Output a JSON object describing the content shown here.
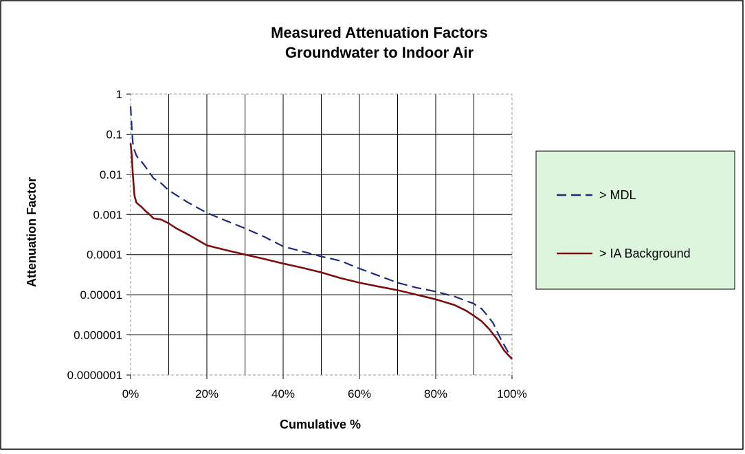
{
  "chart_data": {
    "type": "line",
    "title": [
      "Measured Attenuation Factors",
      "Groundwater to Indoor Air"
    ],
    "xlabel": "Cumulative %",
    "ylabel": "Attenuation Factor",
    "xlim": [
      0,
      100
    ],
    "ylim": [
      1e-07,
      1
    ],
    "yscale": "log",
    "grid": true,
    "legend_position": "right",
    "x_tick_values": [
      0,
      20,
      40,
      60,
      80,
      100
    ],
    "x_tick_labels": [
      "0%",
      "20%",
      "40%",
      "60%",
      "80%",
      "100%"
    ],
    "y_tick_values": [
      1,
      0.1,
      0.01,
      0.001,
      0.0001,
      1e-05,
      1e-06,
      1e-07
    ],
    "y_tick_labels": [
      "1",
      "0.1",
      "0.01",
      "0.001",
      "0.0001",
      "0.00001",
      "0.000001",
      "0.0000001"
    ],
    "vertical_gridlines": [
      10,
      20,
      30,
      40,
      50,
      60,
      70,
      80,
      90
    ],
    "series": [
      {
        "name": "> MDL",
        "color": "#1f2a7a",
        "style": "dashed",
        "x": [
          0,
          0.3,
          0.6,
          1,
          1.5,
          2,
          3,
          4,
          5,
          6,
          8,
          10,
          15,
          20,
          25,
          30,
          35,
          40,
          45,
          50,
          55,
          60,
          65,
          70,
          75,
          80,
          85,
          88,
          90,
          91,
          92,
          93,
          95,
          97,
          100
        ],
        "y": [
          0.5,
          0.15,
          0.06,
          0.04,
          0.03,
          0.025,
          0.02,
          0.015,
          0.011,
          0.008,
          0.006,
          0.004,
          0.002,
          0.0011,
          0.0007,
          0.00045,
          0.00028,
          0.00016,
          0.00012,
          9e-05,
          7e-05,
          4.5e-05,
          3e-05,
          2e-05,
          1.5e-05,
          1.2e-05,
          9e-06,
          7e-06,
          6e-06,
          5e-06,
          4.5e-06,
          3.5e-06,
          2e-06,
          8e-07,
          2.5e-07
        ]
      },
      {
        "name": "> IA Background",
        "color": "#7b0f0f",
        "style": "solid",
        "x": [
          0,
          0.3,
          0.6,
          1,
          1.5,
          2,
          3,
          4,
          5,
          6,
          8,
          10,
          12,
          15,
          18,
          20,
          25,
          30,
          35,
          40,
          45,
          50,
          55,
          60,
          65,
          70,
          75,
          80,
          85,
          88,
          90,
          92,
          94,
          96,
          98,
          100
        ],
        "y": [
          0.06,
          0.03,
          0.01,
          0.003,
          0.002,
          0.0018,
          0.0015,
          0.0012,
          0.001,
          0.0008,
          0.00075,
          0.0006,
          0.00045,
          0.00032,
          0.00022,
          0.00017,
          0.00013,
          0.0001,
          7.8e-05,
          6e-05,
          4.7e-05,
          3.6e-05,
          2.6e-05,
          2e-05,
          1.6e-05,
          1.3e-05,
          1e-05,
          7.7e-06,
          5.5e-06,
          4e-06,
          3e-06,
          2.2e-06,
          1.4e-06,
          8e-07,
          4e-07,
          2.5e-07
        ]
      }
    ]
  }
}
